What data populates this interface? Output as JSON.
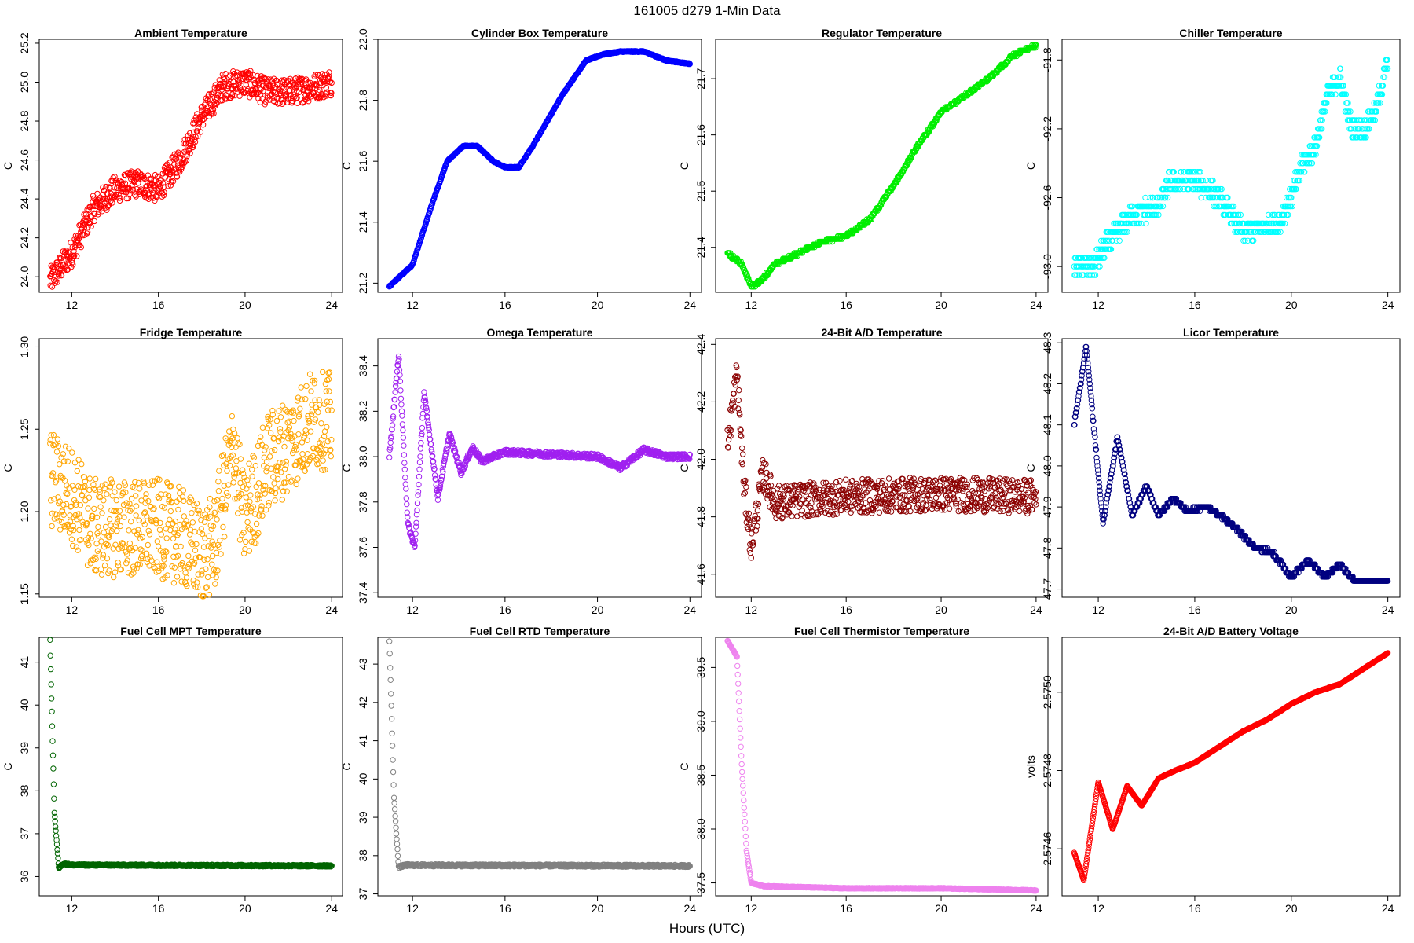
{
  "figure": {
    "title": "161005    d279    1-Min Data",
    "xlabel": "Hours (UTC)"
  },
  "chart_data": [
    {
      "type": "scatter",
      "title": "Ambient Temperature",
      "ylabel": "C",
      "color": "#ff0000",
      "xlim": [
        10.5,
        24.5
      ],
      "ylim": [
        23.92,
        25.22
      ],
      "xticks": [
        12,
        16,
        20,
        24
      ],
      "yticks": [
        24.0,
        24.2,
        24.4,
        24.6,
        24.8,
        25.0,
        25.2
      ],
      "decimals": 1,
      "shape": [
        [
          11,
          23.98
        ],
        [
          12,
          24.12
        ],
        [
          13,
          24.35
        ],
        [
          14,
          24.45
        ],
        [
          15,
          24.48
        ],
        [
          16,
          24.45
        ],
        [
          17,
          24.6
        ],
        [
          18,
          24.82
        ],
        [
          19,
          24.98
        ],
        [
          20,
          25.0
        ],
        [
          21,
          24.95
        ],
        [
          22,
          24.95
        ],
        [
          23,
          24.97
        ],
        [
          24,
          25.0
        ]
      ],
      "noise": 0.07,
      "quantum": 0
    },
    {
      "type": "scatter",
      "title": "Cylinder Box Temperature",
      "ylabel": "C",
      "color": "#0000ff",
      "xlim": [
        10.5,
        24.5
      ],
      "ylim": [
        21.17,
        22.0
      ],
      "xticks": [
        12,
        16,
        20,
        24
      ],
      "yticks": [
        21.2,
        21.4,
        21.6,
        21.8,
        22.0
      ],
      "decimals": 1,
      "shape": [
        [
          11,
          21.19
        ],
        [
          12,
          21.26
        ],
        [
          12.8,
          21.45
        ],
        [
          13.5,
          21.6
        ],
        [
          14.2,
          21.65
        ],
        [
          14.8,
          21.65
        ],
        [
          15.5,
          21.6
        ],
        [
          16,
          21.58
        ],
        [
          16.6,
          21.58
        ],
        [
          17.2,
          21.65
        ],
        [
          18.5,
          21.82
        ],
        [
          19.5,
          21.93
        ],
        [
          20.2,
          21.95
        ],
        [
          21,
          21.96
        ],
        [
          22,
          21.96
        ],
        [
          23,
          21.93
        ],
        [
          24,
          21.92
        ]
      ],
      "noise": 0.002,
      "quantum": 0
    },
    {
      "type": "scatter",
      "title": "Regulator Temperature",
      "ylabel": "C",
      "color": "#00ee00",
      "xlim": [
        10.5,
        24.5
      ],
      "ylim": [
        21.32,
        21.77
      ],
      "xticks": [
        12,
        16,
        20,
        24
      ],
      "yticks": [
        21.4,
        21.5,
        21.6,
        21.7
      ],
      "decimals": 1,
      "shape": [
        [
          11,
          21.39
        ],
        [
          11.6,
          21.37
        ],
        [
          12,
          21.33
        ],
        [
          12.4,
          21.34
        ],
        [
          13,
          21.37
        ],
        [
          14,
          21.39
        ],
        [
          15,
          21.41
        ],
        [
          16,
          21.42
        ],
        [
          17,
          21.45
        ],
        [
          18,
          21.51
        ],
        [
          19,
          21.58
        ],
        [
          20,
          21.64
        ],
        [
          21,
          21.67
        ],
        [
          22,
          21.7
        ],
        [
          23,
          21.74
        ],
        [
          24,
          21.76
        ]
      ],
      "noise": 0.002,
      "quantum": 0.005
    },
    {
      "type": "scatter",
      "title": "Chiller Temperature",
      "ylabel": "C",
      "color": "#00ffff",
      "xlim": [
        10.5,
        24.5
      ],
      "ylim": [
        -93.15,
        -91.68
      ],
      "xticks": [
        12,
        16,
        20,
        24
      ],
      "yticks": [
        -93.0,
        -92.6,
        -92.2,
        -91.8
      ],
      "decimals": 1,
      "shape": [
        [
          11,
          -93.0
        ],
        [
          11.8,
          -93.0
        ],
        [
          12.2,
          -92.9
        ],
        [
          12.8,
          -92.8
        ],
        [
          13.4,
          -92.7
        ],
        [
          14.5,
          -92.65
        ],
        [
          15,
          -92.5
        ],
        [
          16,
          -92.5
        ],
        [
          17,
          -92.6
        ],
        [
          18,
          -92.8
        ],
        [
          19.5,
          -92.75
        ],
        [
          20,
          -92.6
        ],
        [
          20.5,
          -92.4
        ],
        [
          21,
          -92.3
        ],
        [
          21.5,
          -92.0
        ],
        [
          22,
          -91.9
        ],
        [
          22.5,
          -92.2
        ],
        [
          23,
          -92.2
        ],
        [
          23.5,
          -92.1
        ],
        [
          24,
          -91.8
        ]
      ],
      "noise": 0.06,
      "quantum": 0.05
    },
    {
      "type": "scatter",
      "title": "Fridge Temperature",
      "ylabel": "C",
      "color": "#ffa500",
      "xlim": [
        10.5,
        24.5
      ],
      "ylim": [
        1.148,
        1.305
      ],
      "xticks": [
        12,
        16,
        20,
        24
      ],
      "yticks": [
        1.15,
        1.2,
        1.25,
        1.3
      ],
      "decimals": 2,
      "shape": [
        [
          11,
          1.22
        ],
        [
          12,
          1.21
        ],
        [
          13,
          1.19
        ],
        [
          14,
          1.19
        ],
        [
          15,
          1.19
        ],
        [
          16,
          1.19
        ],
        [
          17,
          1.185
        ],
        [
          18,
          1.175
        ],
        [
          18.6,
          1.18
        ],
        [
          19,
          1.21
        ],
        [
          19.5,
          1.24
        ],
        [
          19.9,
          1.195
        ],
        [
          20.5,
          1.21
        ],
        [
          21,
          1.23
        ],
        [
          22,
          1.24
        ],
        [
          23,
          1.255
        ],
        [
          24,
          1.255
        ]
      ],
      "noise": 0.03,
      "quantum": 0
    },
    {
      "type": "scatter",
      "title": "Omega Temperature",
      "ylabel": "C",
      "color": "#a020f0",
      "xlim": [
        10.5,
        24.5
      ],
      "ylim": [
        37.38,
        38.52
      ],
      "xticks": [
        12,
        16,
        20,
        24
      ],
      "yticks": [
        37.4,
        37.6,
        37.8,
        38.0,
        38.2,
        38.4
      ],
      "decimals": 1,
      "shape": [
        [
          11,
          38.0
        ],
        [
          11.4,
          38.45
        ],
        [
          11.8,
          37.7
        ],
        [
          12.1,
          37.6
        ],
        [
          12.5,
          38.28
        ],
        [
          13.1,
          37.82
        ],
        [
          13.6,
          38.1
        ],
        [
          14.1,
          37.93
        ],
        [
          14.6,
          38.04
        ],
        [
          15,
          37.98
        ],
        [
          16,
          38.02
        ],
        [
          18,
          38.01
        ],
        [
          20,
          38.0
        ],
        [
          21,
          37.95
        ],
        [
          22,
          38.03
        ],
        [
          23,
          38.0
        ],
        [
          24,
          38.0
        ]
      ],
      "noise": 0.012,
      "quantum": 0
    },
    {
      "type": "scatter",
      "title": "24-Bit A/D Temperature",
      "ylabel": "C",
      "color": "#8b0000",
      "xlim": [
        10.5,
        24.5
      ],
      "ylim": [
        41.52,
        42.42
      ],
      "xticks": [
        12,
        16,
        20,
        24
      ],
      "yticks": [
        41.6,
        41.8,
        42.0,
        42.2,
        42.4
      ],
      "decimals": 1,
      "shape": [
        [
          11,
          42.05
        ],
        [
          11.4,
          42.3
        ],
        [
          11.7,
          41.9
        ],
        [
          12,
          41.7
        ],
        [
          12.5,
          41.95
        ],
        [
          13,
          41.85
        ],
        [
          16,
          41.87
        ],
        [
          20,
          41.88
        ],
        [
          24,
          41.87
        ]
      ],
      "noise": 0.06,
      "quantum": 0
    },
    {
      "type": "scatter",
      "title": "Licor Temperature",
      "ylabel": "C",
      "color": "#000080",
      "xlim": [
        10.5,
        24.5
      ],
      "ylim": [
        47.68,
        48.31
      ],
      "xticks": [
        12,
        16,
        20,
        24
      ],
      "yticks": [
        47.7,
        47.8,
        47.9,
        48.0,
        48.1,
        48.2,
        48.3
      ],
      "decimals": 1,
      "shape": [
        [
          11,
          48.1
        ],
        [
          11.5,
          48.29
        ],
        [
          12.2,
          47.86
        ],
        [
          12.8,
          48.07
        ],
        [
          13.4,
          47.88
        ],
        [
          14,
          47.95
        ],
        [
          14.5,
          47.88
        ],
        [
          15.1,
          47.92
        ],
        [
          15.7,
          47.89
        ],
        [
          16.5,
          47.9
        ],
        [
          17.5,
          47.86
        ],
        [
          18.5,
          47.8
        ],
        [
          19.2,
          47.79
        ],
        [
          20,
          47.73
        ],
        [
          20.7,
          47.77
        ],
        [
          21.4,
          47.73
        ],
        [
          22,
          47.76
        ],
        [
          22.6,
          47.72
        ],
        [
          24,
          47.72
        ]
      ],
      "noise": 0.003,
      "quantum": 0.01
    },
    {
      "type": "scatter",
      "title": "Fuel Cell MPT Temperature",
      "ylabel": "C",
      "color": "#006400",
      "xlim": [
        10.5,
        24.5
      ],
      "ylim": [
        35.55,
        41.58
      ],
      "xticks": [
        12,
        16,
        20,
        24
      ],
      "yticks": [
        36,
        37,
        38,
        39,
        40,
        41
      ],
      "decimals": 0,
      "shape": [
        [
          11,
          41.5
        ],
        [
          11.2,
          37.5
        ],
        [
          11.4,
          36.2
        ],
        [
          11.6,
          36.3
        ],
        [
          12,
          36.27
        ],
        [
          24,
          36.25
        ]
      ],
      "noise": 0.02,
      "quantum": 0
    },
    {
      "type": "scatter",
      "title": "Fuel Cell RTD Temperature",
      "ylabel": "C",
      "color": "#808080",
      "xlim": [
        10.5,
        24.5
      ],
      "ylim": [
        36.95,
        43.7
      ],
      "xticks": [
        12,
        16,
        20,
        24
      ],
      "yticks": [
        37,
        38,
        39,
        40,
        41,
        42,
        43
      ],
      "decimals": 0,
      "shape": [
        [
          11,
          43.6
        ],
        [
          11.2,
          39.5
        ],
        [
          11.4,
          37.7
        ],
        [
          11.7,
          37.75
        ],
        [
          24,
          37.73
        ]
      ],
      "noise": 0.03,
      "quantum": 0
    },
    {
      "type": "scatter",
      "title": "Fuel Cell Thermistor Temperature",
      "ylabel": "C",
      "color": "#ee82ee",
      "xlim": [
        10.5,
        24.5
      ],
      "ylim": [
        37.38,
        39.78
      ],
      "xticks": [
        12,
        16,
        20,
        24
      ],
      "yticks": [
        37.5,
        38.0,
        38.5,
        39.0,
        39.5
      ],
      "decimals": 1,
      "shape": [
        [
          11,
          39.75
        ],
        [
          11.4,
          39.6
        ],
        [
          11.6,
          38.6
        ],
        [
          11.8,
          37.8
        ],
        [
          12,
          37.5
        ],
        [
          12.5,
          37.47
        ],
        [
          16,
          37.45
        ],
        [
          20,
          37.45
        ],
        [
          24,
          37.43
        ]
      ],
      "noise": 0.004,
      "quantum": 0
    },
    {
      "type": "scatter",
      "title": "24-Bit A/D Battery Voltage",
      "ylabel": "volts",
      "color": "#ff0000",
      "xlim": [
        10.5,
        24.5
      ],
      "ylim": [
        2.57448,
        2.57514
      ],
      "xticks": [
        12,
        16,
        20,
        24
      ],
      "yticks": [
        2.5746,
        2.5748,
        2.575
      ],
      "decimals": 4,
      "shape": [
        [
          11,
          2.57459
        ],
        [
          11.4,
          2.57452
        ],
        [
          12,
          2.57477
        ],
        [
          12.6,
          2.57465
        ],
        [
          13.2,
          2.57476
        ],
        [
          13.8,
          2.57471
        ],
        [
          14.5,
          2.57478
        ],
        [
          15.2,
          2.5748
        ],
        [
          16,
          2.57482
        ],
        [
          17,
          2.57486
        ],
        [
          18,
          2.5749
        ],
        [
          19,
          2.57493
        ],
        [
          20,
          2.57497
        ],
        [
          21,
          2.575
        ],
        [
          22,
          2.57502
        ],
        [
          23,
          2.57506
        ],
        [
          24,
          2.5751
        ]
      ],
      "noise": 6e-07,
      "quantum": 0
    }
  ]
}
